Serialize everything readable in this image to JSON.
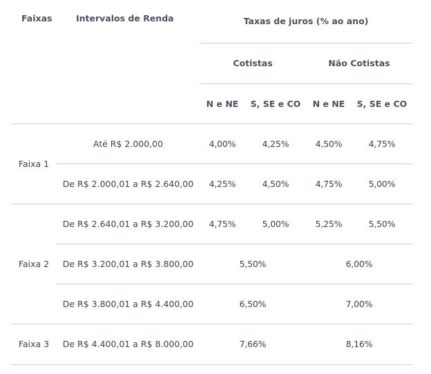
{
  "table": {
    "header": {
      "faixas": "Faixas",
      "intervalos": "Intervalos de Renda",
      "taxas": "Taxas de juros (% ao ano)",
      "cotistas": "Cotistas",
      "nao_cotistas": "Não Cotistas",
      "regions": [
        "N e NE",
        "S, SE e CO",
        "N e NE",
        "S, SE e CO"
      ]
    },
    "rows": [
      {
        "faixa": "Faixa 1",
        "renda": "Até R$ 2.000,00",
        "rates": [
          "4,00%",
          "4,25%",
          "4,50%",
          "4,75%"
        ]
      },
      {
        "faixa": "",
        "renda": "De R$ 2.000,01 a R$ 2.640,00",
        "rates": [
          "4,25%",
          "4,50%",
          "4,75%",
          "5,00%"
        ]
      },
      {
        "faixa": "Faixa 2",
        "renda": "De R$ 2.640,01 a R$ 3.200,00",
        "rates": [
          "4,75%",
          "5,00%",
          "5,25%",
          "5,50%"
        ]
      },
      {
        "faixa": "",
        "renda": "De R$ 3.200,01 a R$ 3.800,00",
        "cotistas": "5,50%",
        "nao_cotistas": "6,00%"
      },
      {
        "faixa": "",
        "renda": "De R$ 3.800,01 a R$ 4.400,00",
        "cotistas": "6,50%",
        "nao_cotistas": "7,00%"
      },
      {
        "faixa": "Faixa 3",
        "renda": "De R$ 4.400,01 a R$ 8.000,00",
        "cotistas": "7,66%",
        "nao_cotistas": "8,16%"
      }
    ]
  },
  "colors": {
    "text": "#3c4250",
    "header_text": "#4b5161",
    "divider": "#c7d3e3",
    "background": "#ffffff"
  }
}
